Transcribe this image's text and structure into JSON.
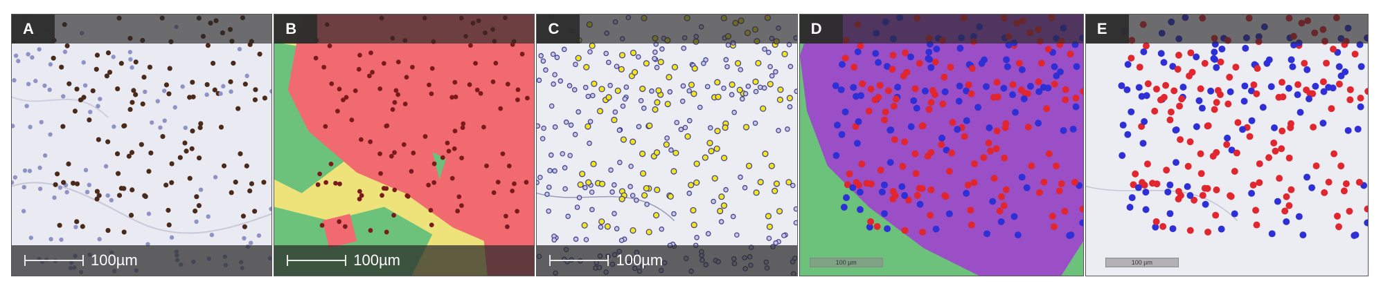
{
  "panels": [
    {
      "letter": "A",
      "scale_label": "100µm"
    },
    {
      "letter": "B",
      "scale_label": "100µm"
    },
    {
      "letter": "C",
      "scale_label": "100µm"
    },
    {
      "letter": "D",
      "scale_label": "100 µm"
    },
    {
      "letter": "E",
      "scale_label": "100 µm"
    }
  ],
  "colors": {
    "tissue_bg": "#e9e9f1",
    "nucleus_brown": "#4a2a1a",
    "nucleus_blue": "#8e92c4",
    "overlay_red": "#f06a70",
    "overlay_green": "#6cc27a",
    "overlay_yellow": "#eee27a",
    "marker_yellow": "#f2e51c",
    "marker_navy": "#3a3a8c",
    "dot_red": "#e0262e",
    "dot_blue": "#2f2fd6",
    "overlay_purple": "#9a4fc6"
  }
}
